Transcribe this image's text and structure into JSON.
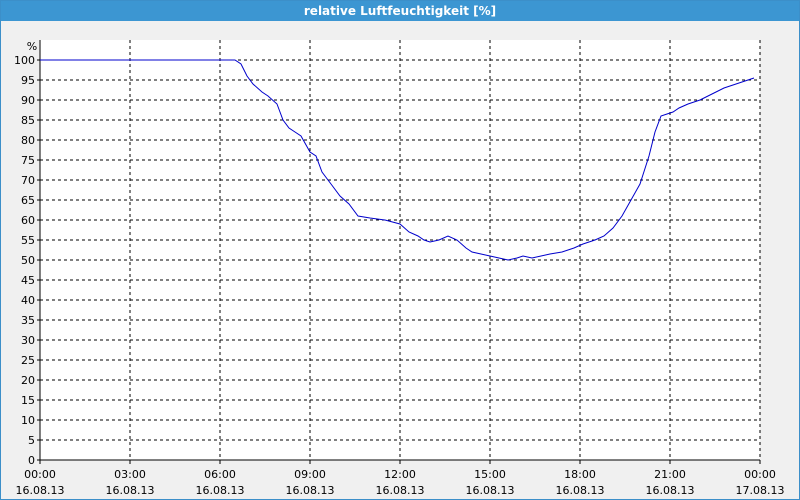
{
  "window": {
    "title": "relative Luftfeuchtigkeit [%]"
  },
  "chart_data": {
    "type": "line",
    "title": "relative Luftfeuchtigkeit [%]",
    "ylabel": "%",
    "xlabel": "",
    "ylim": [
      0,
      100
    ],
    "y_ticks": [
      0,
      5,
      10,
      15,
      20,
      25,
      30,
      35,
      40,
      45,
      50,
      55,
      60,
      65,
      70,
      75,
      80,
      85,
      90,
      95,
      100
    ],
    "x_ticks": [
      {
        "time": "00:00",
        "date": "16.08.13",
        "hour": 0
      },
      {
        "time": "03:00",
        "date": "16.08.13",
        "hour": 3
      },
      {
        "time": "06:00",
        "date": "16.08.13",
        "hour": 6
      },
      {
        "time": "09:00",
        "date": "16.08.13",
        "hour": 9
      },
      {
        "time": "12:00",
        "date": "16.08.13",
        "hour": 12
      },
      {
        "time": "15:00",
        "date": "16.08.13",
        "hour": 15
      },
      {
        "time": "18:00",
        "date": "16.08.13",
        "hour": 18
      },
      {
        "time": "21:00",
        "date": "16.08.13",
        "hour": 21
      },
      {
        "time": "00:00",
        "date": "17.08.13",
        "hour": 24
      }
    ],
    "grid": true,
    "line_color": "#0000cc",
    "series": [
      {
        "x": [
          0,
          1,
          2,
          3,
          4,
          5,
          6,
          6.5,
          6.7,
          6.9,
          7.1,
          7.4,
          7.6,
          7.9,
          8.1,
          8.3,
          8.5,
          8.7,
          9,
          9.2,
          9.4,
          9.7,
          10,
          10.3,
          10.6,
          11,
          11.5,
          12,
          12.3,
          12.6,
          12.8,
          13,
          13.3,
          13.6,
          13.9,
          14.2,
          14.4,
          14.7,
          15,
          15.3,
          15.6,
          15.9,
          16.1,
          16.4,
          16.7,
          17,
          17.4,
          17.8,
          18.1,
          18.5,
          18.8,
          19.1,
          19.4,
          19.7,
          20,
          20.3,
          20.5,
          20.7,
          20.9,
          21.1,
          21.3,
          21.6,
          22,
          22.4,
          22.8,
          23.2,
          23.6,
          23.8
        ],
        "values": [
          100,
          100,
          100,
          100,
          100,
          100,
          100,
          100,
          99,
          96,
          94,
          92,
          91,
          89,
          85,
          83,
          82,
          81,
          77,
          76,
          72,
          69,
          66,
          64,
          61,
          60.5,
          60,
          59,
          57,
          56,
          55,
          54.5,
          55,
          56,
          55,
          53,
          52,
          51.5,
          51,
          50.5,
          50,
          50.5,
          51,
          50.5,
          51,
          51.5,
          52,
          53,
          54,
          55,
          56,
          58,
          61,
          65,
          69,
          76,
          82,
          86,
          86.5,
          87,
          88,
          89,
          90,
          91.5,
          93,
          94,
          95,
          95.5
        ]
      }
    ]
  }
}
